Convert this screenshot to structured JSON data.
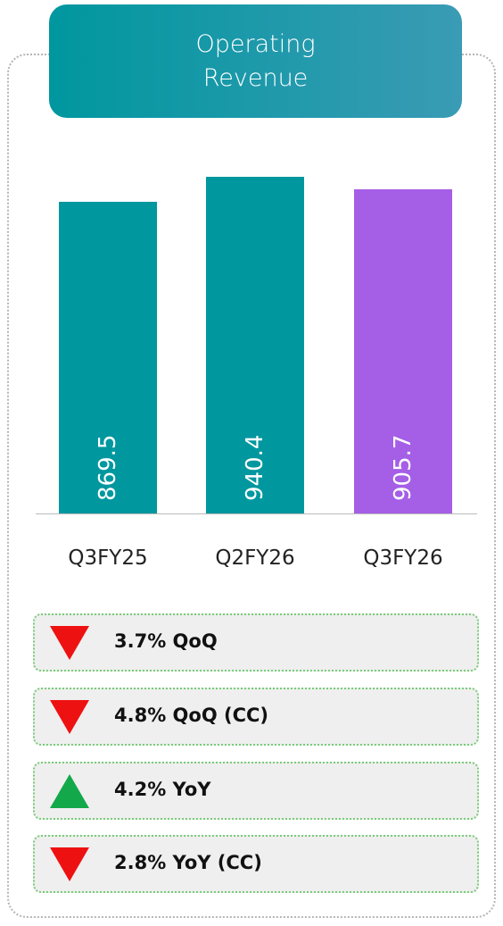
{
  "chart_data": {
    "type": "bar",
    "title": "Operating Revenue",
    "categories": [
      "Q3FY25",
      "Q2FY26",
      "Q3FY26"
    ],
    "values": [
      869.5,
      940.4,
      905.7
    ],
    "colors": [
      "#00979f",
      "#00979f",
      "#a55ee6"
    ]
  },
  "indicators": [
    {
      "direction": "down",
      "text": "3.7% QoQ"
    },
    {
      "direction": "down",
      "text": "4.8% QoQ (CC)"
    },
    {
      "direction": "up",
      "text": "4.2% YoY"
    },
    {
      "direction": "down",
      "text": "2.8% YoY (CC)"
    }
  ]
}
